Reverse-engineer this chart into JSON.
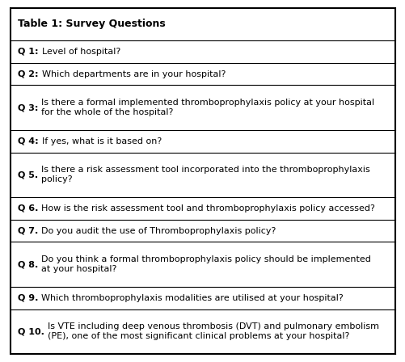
{
  "title": "Table 1: Survey Questions",
  "rows": [
    {
      "label": "Q 1:",
      "text": "Level of hospital?",
      "lines": 1
    },
    {
      "label": "Q 2:",
      "text": "Which departments are in your hospital?",
      "lines": 1
    },
    {
      "label": "Q 3:",
      "text": "Is there a formal implemented thromboprophylaxis policy at your hospital\nfor the whole of the hospital?",
      "lines": 2
    },
    {
      "label": "Q 4:",
      "text": "If yes, what is it based on?",
      "lines": 1
    },
    {
      "label": "Q 5.",
      "text": "Is there a risk assessment tool incorporated into the thromboprophylaxis\npolicy?",
      "lines": 2
    },
    {
      "label": "Q 6.",
      "text": "How is the risk assessment tool and thromboprophylaxis policy accessed?",
      "lines": 1
    },
    {
      "label": "Q 7.",
      "text": "Do you audit the use of Thromboprophylaxis policy?",
      "lines": 1
    },
    {
      "label": "Q 8.",
      "text": "Do you think a formal thromboprophylaxis policy should be implemented\nat your hospital?",
      "lines": 2
    },
    {
      "label": "Q 9.",
      "text": "Which thromboprophylaxis modalities are utilised at your hospital?",
      "lines": 1
    },
    {
      "label": "Q 10.",
      "text": "Is VTE including deep venous thrombosis (DVT) and pulmonary embolism\n(PE), one of the most significant clinical problems at your hospital?",
      "lines": 2
    }
  ],
  "bg_color": "#ffffff",
  "border_color": "#000000",
  "text_color": "#000000",
  "font_size": 8.0,
  "title_font_size": 9.0,
  "title_lines": 1,
  "fig_width": 5.02,
  "fig_height": 4.48,
  "dpi": 100
}
